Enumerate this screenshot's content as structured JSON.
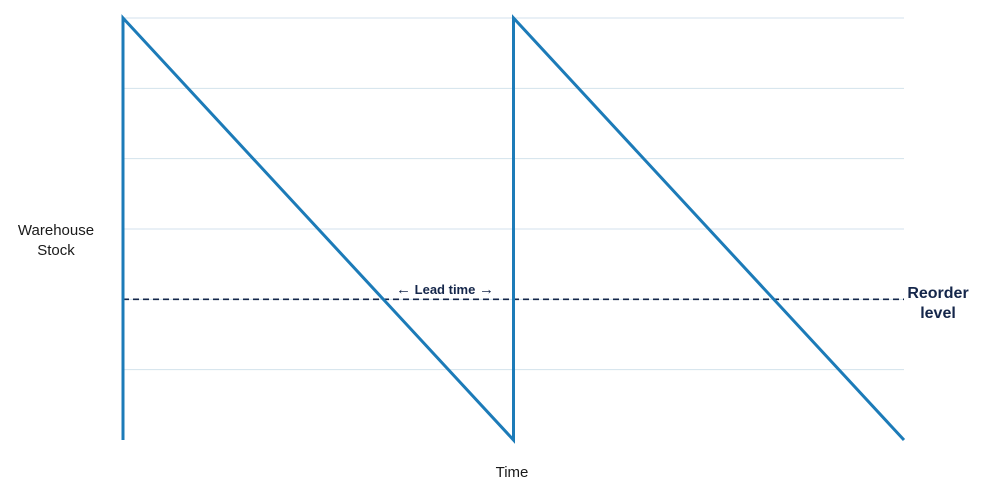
{
  "chart_data": {
    "type": "line",
    "title": "",
    "xlabel": "Time",
    "ylabel_lines": [
      "Warehouse",
      "Stock"
    ],
    "xlim": [
      0,
      12
    ],
    "ylim": [
      0,
      6
    ],
    "grid": "horizontal",
    "series": [
      {
        "x": [
          0,
          0,
          6,
          6,
          12
        ],
        "y": [
          0,
          6,
          0,
          6,
          0
        ],
        "color": "#1c7bb8"
      }
    ],
    "reorder_level": {
      "y": 2,
      "label_lines": [
        "Reorder",
        "level"
      ],
      "color": "#14264a",
      "style": "dashed"
    },
    "lead_time": {
      "text": "Lead time",
      "arrow_left": "←",
      "arrow_right": "→"
    }
  }
}
